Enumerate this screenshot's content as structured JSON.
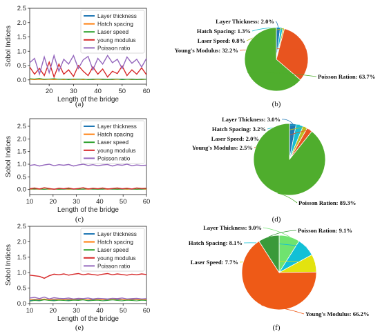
{
  "colors": {
    "layer": "#1f77b4",
    "hatch": "#ff7f0e",
    "laser": "#2ca02c",
    "young": "#d62728",
    "poisson": "#9467bd"
  },
  "chart_data": [
    {
      "type": "line",
      "caption": "(a)",
      "xlabel": "Length of the bridge",
      "ylabel": "Sobol Indices",
      "xlim": [
        12,
        60
      ],
      "ylim": [
        -0.15,
        2.5
      ],
      "xticks": [
        "20",
        "30",
        "40",
        "50",
        "60"
      ],
      "yticks": [
        "0.0",
        "0.5",
        "1.0",
        "1.5",
        "2.0",
        "2.5"
      ],
      "legend": "top-right",
      "series": [
        {
          "name": "Layer thickness",
          "values": [
            0.03,
            0.02,
            0.04,
            0.02,
            0.03,
            0.02,
            0.03,
            0.02,
            0.03,
            0.02,
            0.03,
            0.02,
            0.02,
            0.03,
            0.02,
            0.03,
            0.02,
            0.03,
            0.02,
            0.03,
            0.02,
            0.03,
            0.02,
            0.03,
            0.02
          ]
        },
        {
          "name": "Hatch spacing",
          "values": [
            0.02,
            0.01,
            0.02,
            0.01,
            0.02,
            0.01,
            0.02,
            0.01,
            0.02,
            0.01,
            0.02,
            0.01,
            0.02,
            0.01,
            0.02,
            0.01,
            0.02,
            0.01,
            0.02,
            0.01,
            0.02,
            0.01,
            0.02,
            0.01,
            0.02
          ]
        },
        {
          "name": "Laser speed",
          "values": [
            0.04,
            0.03,
            0.05,
            0.02,
            0.03,
            0.04,
            0.02,
            0.03,
            0.01,
            0.03,
            0.02,
            0.03,
            0.01,
            0.02,
            0.03,
            0.02,
            0.01,
            0.02,
            0.03,
            0.01,
            0.02,
            0.02,
            0.01,
            0.02,
            0.02
          ]
        },
        {
          "name": "young modulus",
          "values": [
            0.45,
            0.2,
            0.4,
            0.15,
            0.62,
            0.1,
            0.55,
            0.2,
            0.35,
            0.12,
            0.5,
            0.3,
            0.15,
            0.45,
            0.2,
            0.38,
            0.1,
            0.3,
            0.22,
            0.48,
            0.15,
            0.35,
            0.2,
            0.42,
            0.18
          ]
        },
        {
          "name": "Poisson ratio",
          "values": [
            0.6,
            0.75,
            0.2,
            0.8,
            0.25,
            0.85,
            0.3,
            0.72,
            0.55,
            0.85,
            0.4,
            0.7,
            0.82,
            0.35,
            0.75,
            0.55,
            0.85,
            0.6,
            0.72,
            0.4,
            0.8,
            0.58,
            0.72,
            0.45,
            0.75
          ]
        }
      ]
    },
    {
      "type": "pie",
      "caption": "(b)",
      "slices": [
        {
          "label": "Layer Thickness: 2.0%",
          "value": 2.0,
          "color": "#1f77b4"
        },
        {
          "label": "Hatch Spacing: 1.3%",
          "value": 1.3,
          "color": "#17becf"
        },
        {
          "label": "Laser Speed: 0.8%",
          "value": 0.8,
          "color": "#bcbd22"
        },
        {
          "label": "Young's Modulus: 32.2%",
          "value": 32.2,
          "color": "#e8541f"
        },
        {
          "label": "Poisson Ration: 63.7%",
          "value": 63.7,
          "color": "#4fad2d"
        }
      ]
    },
    {
      "type": "line",
      "caption": "(c)",
      "xlabel": "Length of the bridge",
      "ylabel": "Sobol Indices",
      "xlim": [
        10,
        60
      ],
      "ylim": [
        -0.2,
        2.8
      ],
      "xticks": [
        "10",
        "20",
        "30",
        "40",
        "50",
        "60"
      ],
      "yticks": [
        "0.0",
        "0.5",
        "1.0",
        "1.5",
        "2.0",
        "2.5"
      ],
      "legend": "top-right",
      "series": [
        {
          "name": "Layer thickness",
          "values": [
            0.02,
            0.01,
            0.02,
            0.01,
            0.02,
            0.01,
            0.02,
            0.01,
            0.02,
            0.01,
            0.02,
            0.01,
            0.02,
            0.01,
            0.02,
            0.01,
            0.02,
            0.01,
            0.02,
            0.01,
            0.02,
            0.01,
            0.02,
            0.01,
            0.02
          ]
        },
        {
          "name": "Hatch spacing",
          "values": [
            0.01,
            0.02,
            0.01,
            0.02,
            0.01,
            0.02,
            0.01,
            0.02,
            0.01,
            0.02,
            0.01,
            0.02,
            0.01,
            0.02,
            0.01,
            0.02,
            0.01,
            0.02,
            0.01,
            0.02,
            0.01,
            0.02,
            0.01,
            0.02,
            0.01
          ]
        },
        {
          "name": "Laser speed",
          "values": [
            0.02,
            0.03,
            0.02,
            0.01,
            0.03,
            0.02,
            0.01,
            0.02,
            0.03,
            0.02,
            0.01,
            0.02,
            0.03,
            0.02,
            0.01,
            0.02,
            0.03,
            0.02,
            0.01,
            0.02,
            0.03,
            0.02,
            0.01,
            0.02,
            0.03
          ]
        },
        {
          "name": "young modulus",
          "values": [
            0.03,
            0.06,
            0.02,
            0.07,
            0.04,
            0.01,
            0.05,
            0.03,
            0.06,
            0.02,
            0.04,
            0.07,
            0.02,
            0.05,
            0.03,
            0.06,
            0.02,
            0.04,
            0.06,
            0.03,
            0.05,
            0.02,
            0.06,
            0.04,
            0.05
          ]
        },
        {
          "name": "Poisson ratio",
          "values": [
            0.95,
            0.98,
            0.93,
            0.97,
            1.0,
            0.94,
            0.98,
            0.96,
            0.99,
            0.93,
            0.97,
            1.0,
            0.95,
            0.98,
            0.94,
            0.97,
            0.99,
            0.93,
            0.98,
            0.96,
            1.0,
            0.94,
            0.97,
            0.95,
            0.96
          ]
        }
      ]
    },
    {
      "type": "pie",
      "caption": "(d)",
      "slices": [
        {
          "label": "Layer Thickness: 3.0%",
          "value": 3.0,
          "color": "#1f77b4"
        },
        {
          "label": "Hatch Spacing: 3.2%",
          "value": 3.2,
          "color": "#17becf"
        },
        {
          "label": "Laser Speed: 2.0%",
          "value": 2.0,
          "color": "#bcbd22"
        },
        {
          "label": "Young's Modulus: 2.5%",
          "value": 2.5,
          "color": "#e8541f"
        },
        {
          "label": "Poisson Ration: 89.3%",
          "value": 89.3,
          "color": "#4fad2d"
        }
      ]
    },
    {
      "type": "line",
      "caption": "(e)",
      "xlabel": "Length of the bridge",
      "ylabel": "Sobol Indices",
      "xlim": [
        10,
        60
      ],
      "ylim": [
        0,
        2.5
      ],
      "xticks": [
        "10",
        "20",
        "30",
        "40",
        "50",
        "60"
      ],
      "yticks": [
        "0.0",
        "0.5",
        "1.0",
        "1.5",
        "2.0",
        "2.5"
      ],
      "legend": "top-right",
      "series": [
        {
          "name": "Layer thickness",
          "values": [
            0.1,
            0.12,
            0.11,
            0.13,
            0.12,
            0.11,
            0.12,
            0.13,
            0.11,
            0.12,
            0.13,
            0.12,
            0.11,
            0.12,
            0.13,
            0.12,
            0.11,
            0.12,
            0.13,
            0.12,
            0.11,
            0.12,
            0.13,
            0.12,
            0.12
          ]
        },
        {
          "name": "Hatch spacing",
          "values": [
            0.12,
            0.14,
            0.13,
            0.15,
            0.12,
            0.14,
            0.13,
            0.12,
            0.14,
            0.13,
            0.15,
            0.13,
            0.12,
            0.14,
            0.13,
            0.12,
            0.14,
            0.13,
            0.15,
            0.13,
            0.12,
            0.14,
            0.13,
            0.12,
            0.13
          ]
        },
        {
          "name": "Laser speed",
          "values": [
            0.08,
            0.1,
            0.09,
            0.12,
            0.1,
            0.09,
            0.11,
            0.1,
            0.09,
            0.11,
            0.1,
            0.12,
            0.09,
            0.1,
            0.11,
            0.09,
            0.1,
            0.12,
            0.1,
            0.09,
            0.11,
            0.1,
            0.09,
            0.11,
            0.1
          ]
        },
        {
          "name": "young modulus",
          "values": [
            0.92,
            0.9,
            0.88,
            0.82,
            0.9,
            0.95,
            0.93,
            0.96,
            0.92,
            0.95,
            0.97,
            0.93,
            0.96,
            0.94,
            0.92,
            0.95,
            0.97,
            0.93,
            0.96,
            0.94,
            0.92,
            0.95,
            0.93,
            0.96,
            0.94
          ]
        },
        {
          "name": "Poisson ratio",
          "values": [
            0.18,
            0.2,
            0.16,
            0.21,
            0.15,
            0.19,
            0.17,
            0.16,
            0.18,
            0.15,
            0.17,
            0.16,
            0.18,
            0.15,
            0.17,
            0.16,
            0.15,
            0.17,
            0.16,
            0.18,
            0.15,
            0.16,
            0.17,
            0.15,
            0.16
          ]
        }
      ]
    },
    {
      "type": "pie",
      "caption": "(f)",
      "slices": [
        {
          "label": "Layer Thickness: 9.0%",
          "value": 9.0,
          "color": "#6fe36f"
        },
        {
          "label": "Hatch Spacing: 8.1%",
          "value": 8.1,
          "color": "#12c0d6"
        },
        {
          "label": "Laser Speed: 7.7%",
          "value": 7.7,
          "color": "#e3e30f"
        },
        {
          "label": "Young's Modulus: 66.2%",
          "value": 66.2,
          "color": "#ee5a17"
        },
        {
          "label": "Poisson Ration: 9.1%",
          "value": 9.1,
          "color": "#3a9a3a"
        }
      ]
    }
  ]
}
